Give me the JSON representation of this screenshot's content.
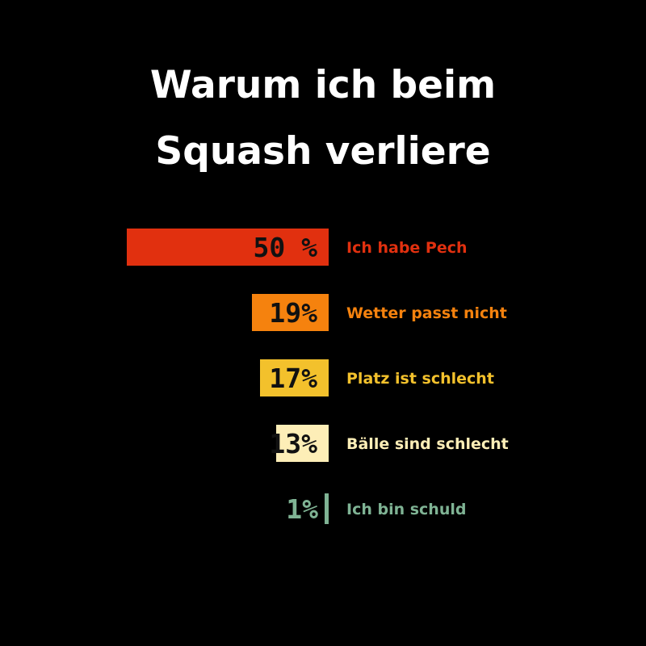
{
  "title_lines": [
    "Warum ich beim",
    "Squash verliere"
  ],
  "chart_data": {
    "type": "bar",
    "orientation": "horizontal",
    "title": "Warum ich beim Squash verliere",
    "categories": [
      "Ich habe Pech",
      "Wetter passt nicht",
      "Platz ist schlecht",
      "Bälle sind schlecht",
      "Ich bin schuld"
    ],
    "values": [
      50,
      19,
      17,
      13,
      1
    ],
    "value_labels": [
      "50 %",
      "19%",
      "17%",
      "13%",
      "1%"
    ],
    "xlim": [
      0,
      50
    ],
    "unit": "%",
    "grid": false,
    "bar_colors": [
      "#e1300f",
      "#f5820e",
      "#f3c12c",
      "#fdeeb7",
      "#7fb394"
    ],
    "label_colors": [
      "#e1300f",
      "#f5820e",
      "#f3c12c",
      "#fdeeb7",
      "#7fb394"
    ],
    "value_label_colors": [
      "#111111",
      "#111111",
      "#111111",
      "#111111",
      "#7fb394"
    ]
  },
  "colors": {
    "background": "#000000",
    "title": "#ffffff"
  }
}
